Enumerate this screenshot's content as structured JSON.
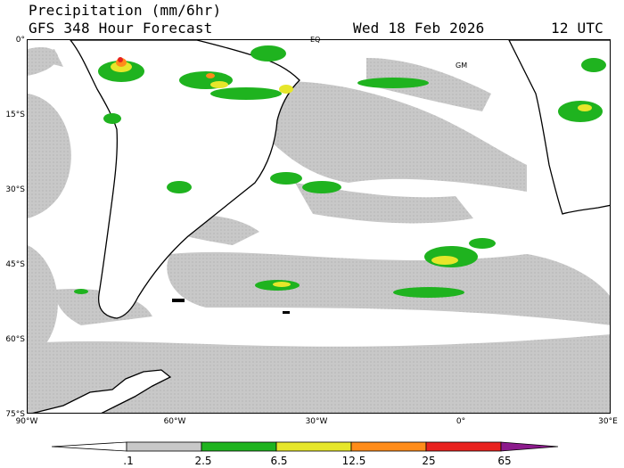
{
  "header": {
    "title": "Precipitation (mm/6hr)",
    "subtitle": "GFS 348 Hour Forecast",
    "valid_date": "Wed 18 Feb 2026",
    "valid_time": "12 UTC"
  },
  "map": {
    "lat_labels": [
      "0°",
      "15°S",
      "30°S",
      "45°S",
      "60°S",
      "75°S"
    ],
    "lon_labels": [
      "90°W",
      "60°W",
      "30°W",
      "0°",
      "30°E"
    ],
    "markers": {
      "eq": "EQ",
      "gm": "GM"
    },
    "colors": {
      "land": "#ffffff",
      "outline": "#000000",
      "light_precip": "#c8c8c8",
      "green": "#1fb31f",
      "yellow": "#e6e62a",
      "orange": "#ff8c1a",
      "red": "#e8221e",
      "purple": "#8c1a8c"
    }
  },
  "colorbar": {
    "labels": [
      ".1",
      "2.5",
      "6.5",
      "12.5",
      "25",
      "65"
    ],
    "colors": [
      "#ffffff",
      "#c8c8c8",
      "#1fb31f",
      "#e6e62a",
      "#ff8c1a",
      "#e8221e",
      "#8c1a8c"
    ]
  }
}
